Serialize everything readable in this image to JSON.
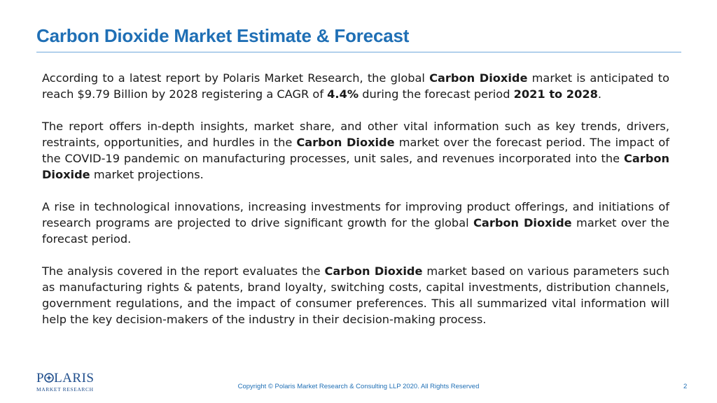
{
  "slide": {
    "title": "Carbon Dioxide Market Estimate & Forecast",
    "paragraphs": [
      {
        "segments": [
          {
            "text": "According to a latest report by Polaris Market Research, the global ",
            "bold": false
          },
          {
            "text": "Carbon Dioxide",
            "bold": true
          },
          {
            "text": " market is anticipated to reach $9.79 Billion by 2028 registering a CAGR of ",
            "bold": false
          },
          {
            "text": "4.4%",
            "bold": true
          },
          {
            "text": " during the  forecast period ",
            "bold": false
          },
          {
            "text": "2021 to 2028",
            "bold": true
          },
          {
            "text": ".",
            "bold": false
          }
        ]
      },
      {
        "segments": [
          {
            "text": "The report offers in-depth insights, market share, and other vital information such as key trends, drivers, restraints, opportunities, and hurdles in the ",
            "bold": false
          },
          {
            "text": "Carbon Dioxide",
            "bold": true
          },
          {
            "text": " market over the forecast period. The impact of the COVID-19 pandemic on manufacturing processes, unit sales, and revenues incorporated into the  ",
            "bold": false
          },
          {
            "text": "Carbon Dioxide",
            "bold": true
          },
          {
            "text": " market projections.",
            "bold": false
          }
        ]
      },
      {
        "segments": [
          {
            "text": "A rise in technological innovations, increasing investments for improving product offerings, and initiations of research programs are projected to drive significant growth for the global ",
            "bold": false
          },
          {
            "text": "Carbon Dioxide",
            "bold": true
          },
          {
            "text": " market over the forecast period.",
            "bold": false
          }
        ]
      },
      {
        "segments": [
          {
            "text": "The analysis covered in the report evaluates the ",
            "bold": false
          },
          {
            "text": "Carbon Dioxide",
            "bold": true
          },
          {
            "text": " market based on various parameters such as manufacturing rights & patents, brand loyalty, switching costs,  capital investments, distribution channels, government regulations, and the impact of consumer preferences. This all summarized vital information will help the key decision-makers of the industry in their decision-making process.",
            "bold": false
          }
        ]
      }
    ]
  },
  "logo": {
    "name_part1": "P",
    "name_part2": "LARIS",
    "subtitle": "MARKET RESEARCH"
  },
  "footer": {
    "copyright": "Copyright © Polaris Market Research & Consulting LLP 2020. All Rights Reserved",
    "page_number": "2"
  },
  "colors": {
    "title": "#1f6fb5",
    "rule": "#6fa8dc",
    "logo": "#1f4e8c",
    "text": "#1a1a1a"
  }
}
